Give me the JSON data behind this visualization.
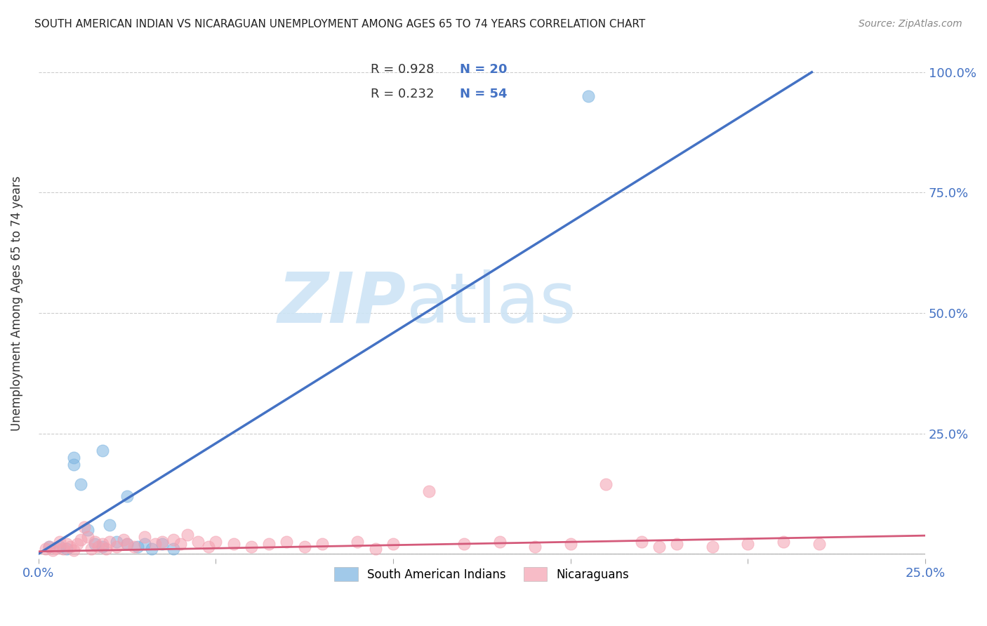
{
  "title": "SOUTH AMERICAN INDIAN VS NICARAGUAN UNEMPLOYMENT AMONG AGES 65 TO 74 YEARS CORRELATION CHART",
  "source": "Source: ZipAtlas.com",
  "ylabel": "Unemployment Among Ages 65 to 74 years",
  "xlim": [
    0.0,
    0.25
  ],
  "ylim": [
    -0.01,
    1.05
  ],
  "xticks": [
    0.0,
    0.05,
    0.1,
    0.15,
    0.2,
    0.25
  ],
  "xticklabels": [
    "0.0%",
    "",
    "",
    "",
    "",
    "25.0%"
  ],
  "ytick_positions": [
    0.0,
    0.25,
    0.5,
    0.75,
    1.0
  ],
  "yticklabels_right": [
    "",
    "25.0%",
    "50.0%",
    "75.0%",
    "100.0%"
  ],
  "grid_color": "#cccccc",
  "background_color": "#ffffff",
  "watermark_zip": "ZIP",
  "watermark_atlas": "atlas",
  "legend_r1": "R = 0.928",
  "legend_n1": "N = 20",
  "legend_r2": "R = 0.232",
  "legend_n2": "N = 54",
  "blue_scatter_color": "#7ab3e0",
  "pink_scatter_color": "#f4a0b0",
  "blue_line_color": "#4472C4",
  "pink_line_color": "#d45a7a",
  "scatter_blue_x": [
    0.003,
    0.006,
    0.008,
    0.01,
    0.012,
    0.014,
    0.016,
    0.018,
    0.02,
    0.022,
    0.025,
    0.028,
    0.03,
    0.032,
    0.035,
    0.038,
    0.01,
    0.018,
    0.025,
    0.155
  ],
  "scatter_blue_y": [
    0.015,
    0.015,
    0.01,
    0.185,
    0.145,
    0.05,
    0.02,
    0.015,
    0.06,
    0.025,
    0.02,
    0.015,
    0.02,
    0.01,
    0.02,
    0.01,
    0.2,
    0.215,
    0.12,
    0.95
  ],
  "scatter_pink_x": [
    0.002,
    0.003,
    0.004,
    0.005,
    0.006,
    0.007,
    0.008,
    0.009,
    0.01,
    0.011,
    0.012,
    0.013,
    0.014,
    0.015,
    0.016,
    0.017,
    0.018,
    0.019,
    0.02,
    0.022,
    0.024,
    0.025,
    0.027,
    0.03,
    0.033,
    0.035,
    0.038,
    0.04,
    0.042,
    0.045,
    0.048,
    0.05,
    0.055,
    0.06,
    0.065,
    0.07,
    0.075,
    0.08,
    0.09,
    0.095,
    0.1,
    0.11,
    0.12,
    0.13,
    0.14,
    0.15,
    0.16,
    0.17,
    0.175,
    0.18,
    0.19,
    0.2,
    0.21,
    0.22
  ],
  "scatter_pink_y": [
    0.01,
    0.015,
    0.008,
    0.012,
    0.025,
    0.01,
    0.02,
    0.015,
    0.008,
    0.02,
    0.03,
    0.055,
    0.035,
    0.01,
    0.025,
    0.015,
    0.02,
    0.01,
    0.025,
    0.015,
    0.03,
    0.02,
    0.015,
    0.035,
    0.02,
    0.025,
    0.03,
    0.02,
    0.04,
    0.025,
    0.015,
    0.025,
    0.02,
    0.015,
    0.02,
    0.025,
    0.015,
    0.02,
    0.025,
    0.01,
    0.02,
    0.13,
    0.02,
    0.025,
    0.015,
    0.02,
    0.145,
    0.025,
    0.015,
    0.02,
    0.015,
    0.02,
    0.025,
    0.02
  ],
  "blue_line_x": [
    0.0,
    0.218
  ],
  "blue_line_y": [
    0.0,
    1.0
  ],
  "pink_line_x": [
    0.0,
    0.25
  ],
  "pink_line_y": [
    0.005,
    0.038
  ],
  "legend_label1": "South American Indians",
  "legend_label2": "Nicaraguans",
  "tick_color": "#4472C4"
}
